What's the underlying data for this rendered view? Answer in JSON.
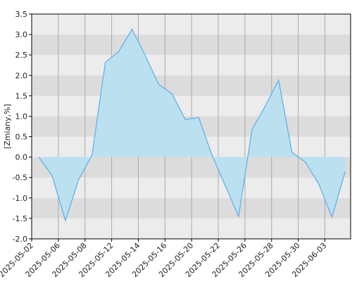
{
  "chart_data": {
    "type": "area",
    "y_label": "[Zmiany,%]",
    "categories": [
      "2025-05-02",
      null,
      "2025-05-06",
      null,
      "2025-05-08",
      null,
      "2025-05-12",
      null,
      "2025-05-14",
      null,
      "2025-05-16",
      null,
      "2025-05-20",
      null,
      "2025-05-22",
      null,
      "2025-05-26",
      null,
      "2025-05-28",
      null,
      "2025-05-30",
      null,
      "2025-06-03",
      null
    ],
    "values": [
      0,
      -0.45,
      -1.55,
      -0.55,
      0.05,
      2.32,
      2.58,
      3.13,
      2.48,
      1.78,
      1.55,
      0.92,
      0.97,
      0.05,
      -0.7,
      -1.45,
      0.67,
      1.25,
      1.88,
      0.12,
      -0.12,
      -0.65,
      -1.47,
      -0.35
    ],
    "color": "#5aaee8",
    "fill": "#b8dff0",
    "ylim": [
      -2.0,
      3.5
    ],
    "yticks": [
      {
        "value": -2.0,
        "label": "-2.0"
      },
      {
        "value": -1.5,
        "label": "-1.5"
      },
      {
        "value": -1.0,
        "label": "-1.0"
      },
      {
        "value": -0.5,
        "label": "-0.5"
      },
      {
        "value": 0.0,
        "label": "0.0"
      },
      {
        "value": 0.5,
        "label": "0.5"
      },
      {
        "value": 1.0,
        "label": "1.0"
      },
      {
        "value": 1.5,
        "label": "1.5"
      },
      {
        "value": 2.0,
        "label": "2.0"
      },
      {
        "value": 2.5,
        "label": "2.5"
      },
      {
        "value": 3.0,
        "label": "3.0"
      },
      {
        "value": 3.5,
        "label": "3.5"
      }
    ],
    "grid": true
  }
}
